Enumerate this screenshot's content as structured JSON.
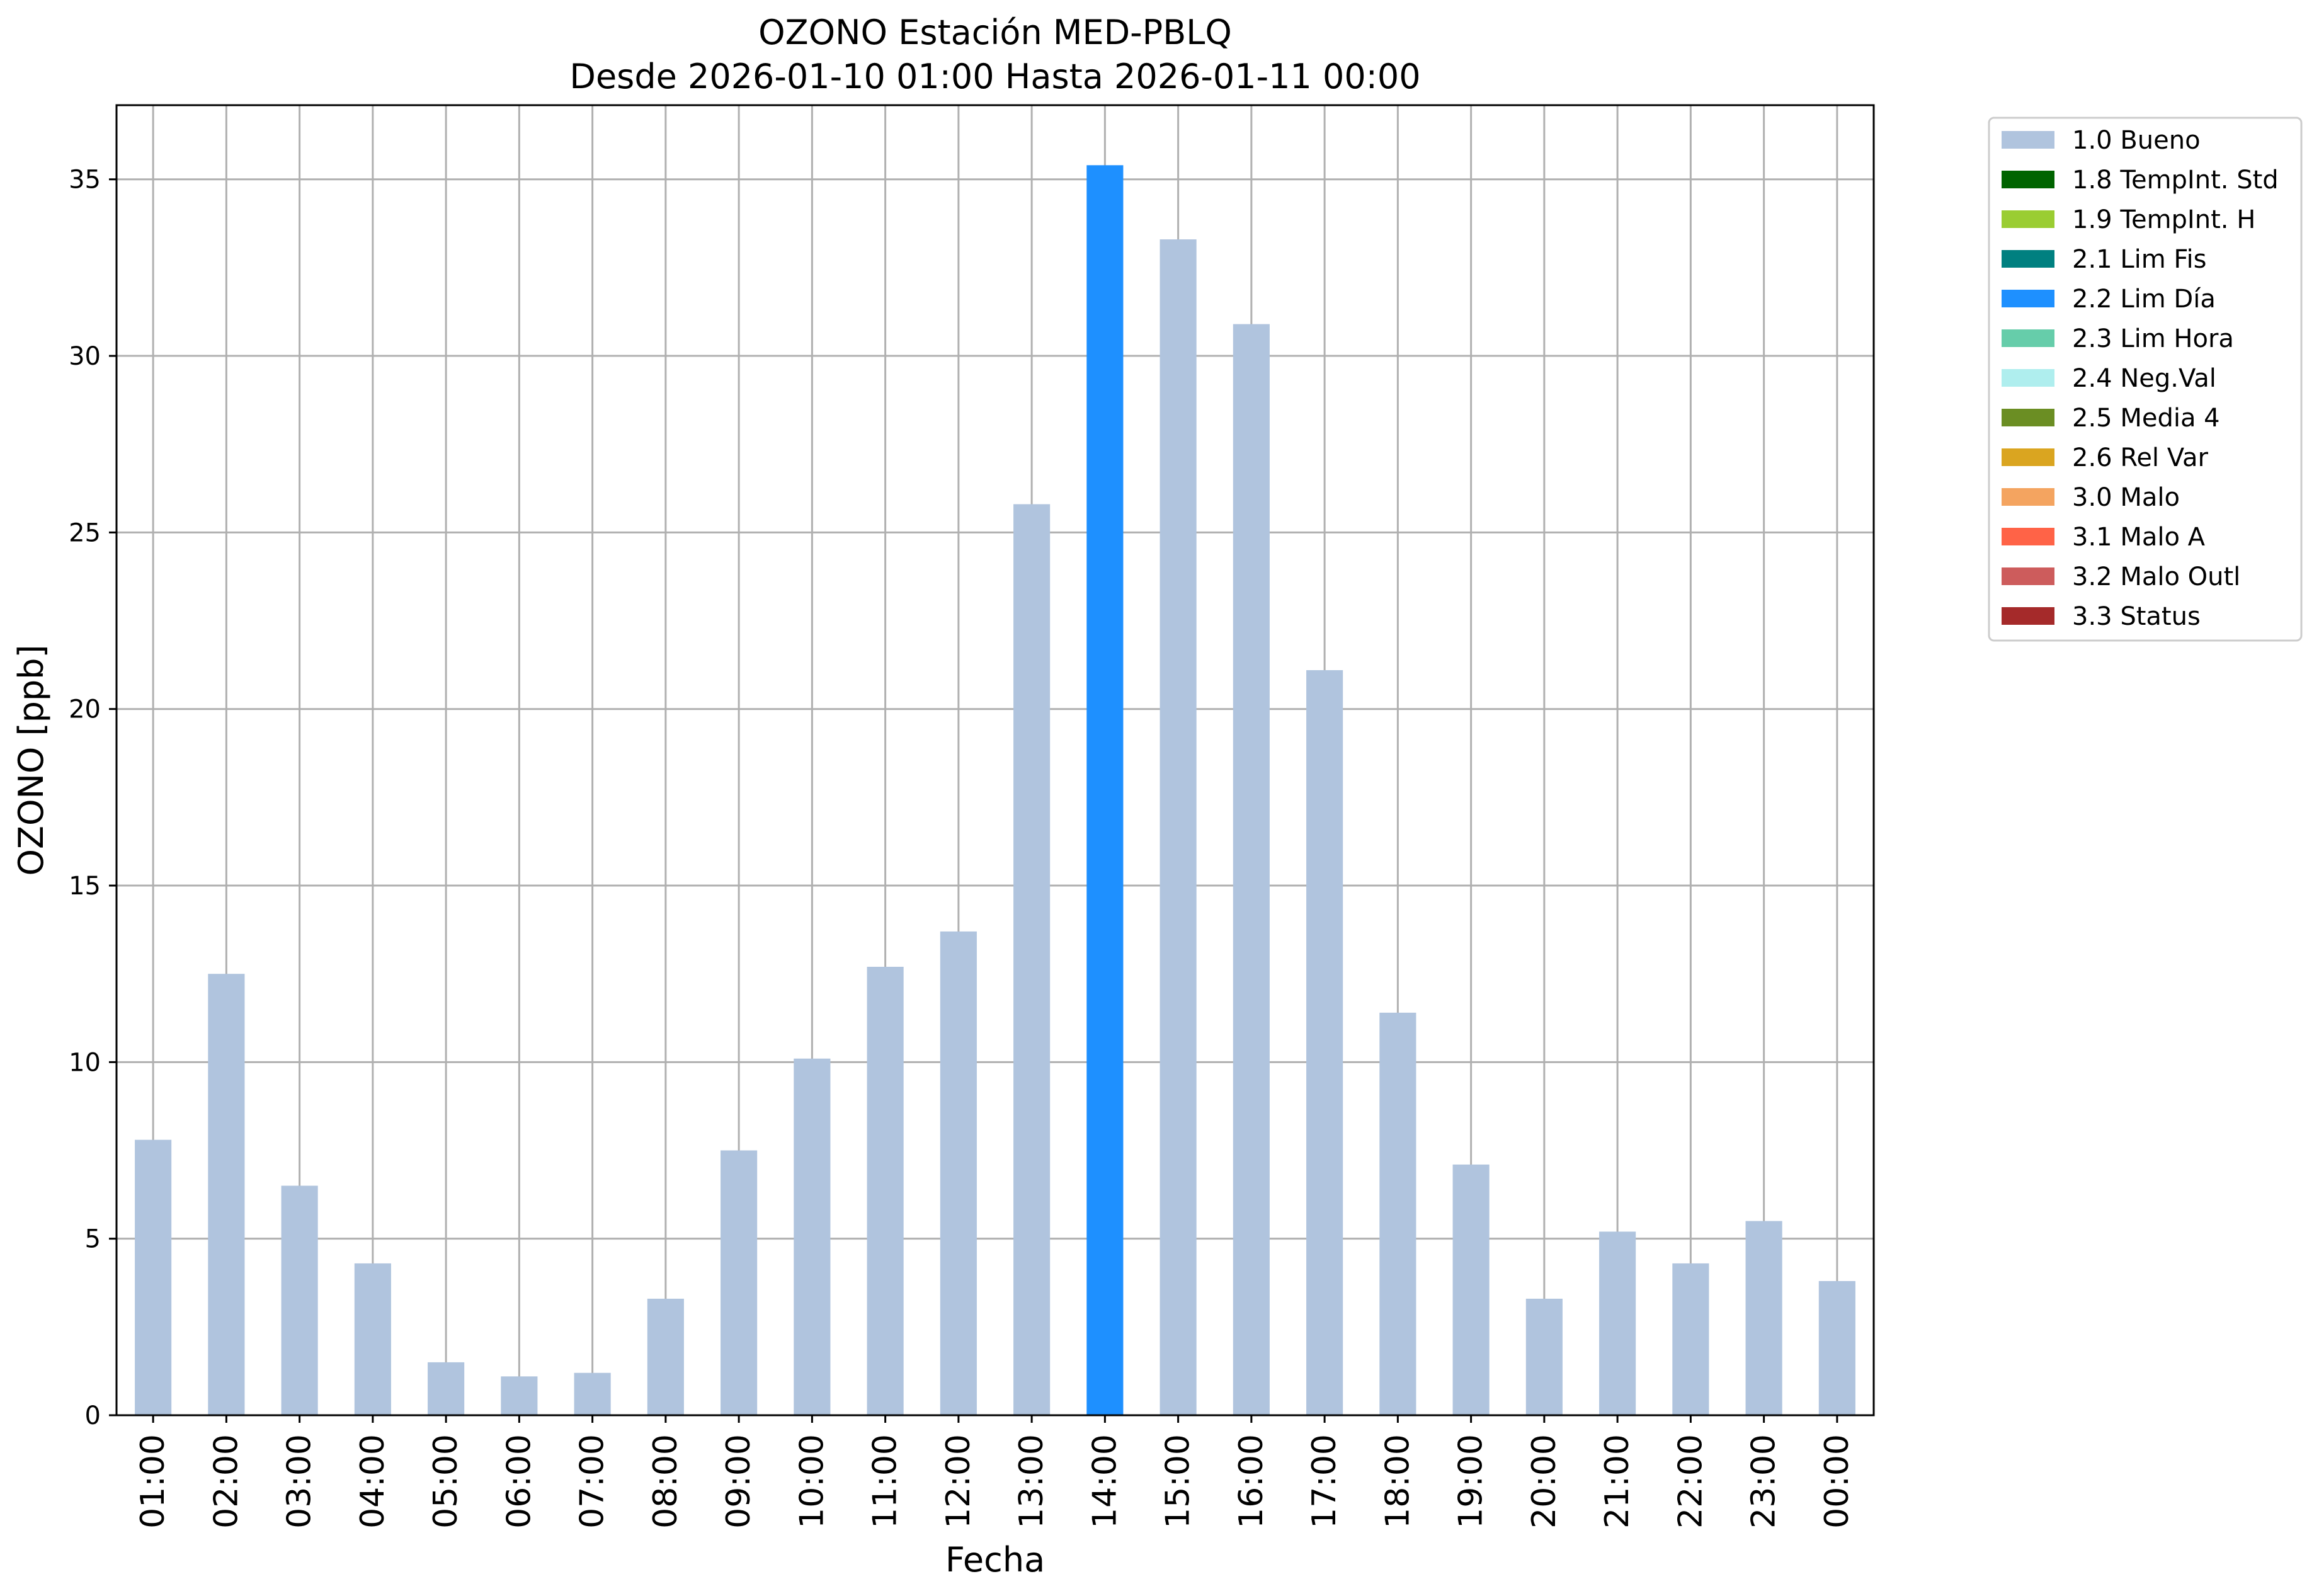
{
  "chart_data": {
    "type": "bar",
    "title_line1": "OZONO Estación MED-PBLQ",
    "title_line2": "Desde 2026-01-10 01:00 Hasta 2026-01-11 00:00",
    "xlabel": "Fecha",
    "ylabel": "OZONO [ppb]",
    "ylim": [
      0,
      37.1
    ],
    "yticks": [
      0,
      5,
      10,
      15,
      20,
      25,
      30,
      35
    ],
    "grid": true,
    "legend_position": "outside-top-right",
    "categories": [
      "01:00",
      "02:00",
      "03:00",
      "04:00",
      "05:00",
      "06:00",
      "07:00",
      "08:00",
      "09:00",
      "10:00",
      "11:00",
      "12:00",
      "13:00",
      "14:00",
      "15:00",
      "16:00",
      "17:00",
      "18:00",
      "19:00",
      "20:00",
      "21:00",
      "22:00",
      "23:00",
      "00:00"
    ],
    "values": [
      7.8,
      12.5,
      6.5,
      4.3,
      1.5,
      1.1,
      1.2,
      3.3,
      7.5,
      10.1,
      12.7,
      13.7,
      25.8,
      35.4,
      33.3,
      30.9,
      21.1,
      11.4,
      7.1,
      3.3,
      5.2,
      4.3,
      5.5,
      3.8
    ],
    "flags": [
      "1.0 Bueno",
      "1.0 Bueno",
      "1.0 Bueno",
      "1.0 Bueno",
      "1.0 Bueno",
      "1.0 Bueno",
      "1.0 Bueno",
      "1.0 Bueno",
      "1.0 Bueno",
      "1.0 Bueno",
      "1.0 Bueno",
      "1.0 Bueno",
      "1.0 Bueno",
      "2.2 Lim Día",
      "1.0 Bueno",
      "1.0 Bueno",
      "1.0 Bueno",
      "1.0 Bueno",
      "1.0 Bueno",
      "1.0 Bueno",
      "1.0 Bueno",
      "1.0 Bueno",
      "1.0 Bueno",
      "1.0 Bueno"
    ],
    "legend": [
      {
        "label": "1.0 Bueno",
        "color": "#b0c4de"
      },
      {
        "label": "1.8 TempInt. Std",
        "color": "#006400"
      },
      {
        "label": "1.9 TempInt. H",
        "color": "#9acd32"
      },
      {
        "label": "2.1 Lim Fis",
        "color": "#008080"
      },
      {
        "label": "2.2 Lim Día",
        "color": "#1e90ff"
      },
      {
        "label": "2.3 Lim Hora",
        "color": "#66cdaa"
      },
      {
        "label": "2.4 Neg.Val",
        "color": "#afeeee"
      },
      {
        "label": "2.5 Media 4",
        "color": "#6b8e23"
      },
      {
        "label": "2.6 Rel Var",
        "color": "#daa520"
      },
      {
        "label": "3.0 Malo",
        "color": "#f4a460"
      },
      {
        "label": "3.1 Malo A",
        "color": "#ff6347"
      },
      {
        "label": "3.2 Malo Outl",
        "color": "#cd5c5c"
      },
      {
        "label": "3.3 Status",
        "color": "#a52a2a"
      }
    ]
  }
}
